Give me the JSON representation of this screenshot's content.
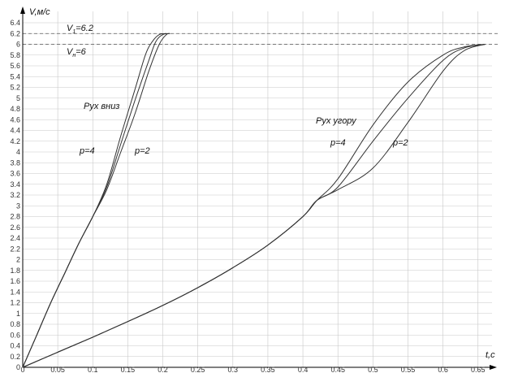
{
  "chart_data": {
    "type": "line",
    "xlabel": "t,c",
    "ylabel": "V,м/с",
    "xlim": [
      0,
      0.67
    ],
    "ylim": [
      0,
      6.4
    ],
    "grid": true,
    "x_ticks": [
      "0",
      "0.05",
      "0.1",
      "0.15",
      "0.2",
      "0.25",
      "0.3",
      "0.35",
      "0.4",
      "0.45",
      "0.5",
      "0.55",
      "0.6",
      "0.65"
    ],
    "y_ticks": [
      "0",
      "0.2",
      "0.4",
      "0.6",
      "0.8",
      "1",
      "1.2",
      "1.4",
      "1.6",
      "1.8",
      "2",
      "2.2",
      "2.4",
      "2.6",
      "2.8",
      "3",
      "3.2",
      "3.4",
      "3.6",
      "3.8",
      "4",
      "4.2",
      "4.4",
      "4.6",
      "4.8",
      "5",
      "5.2",
      "5.4",
      "5.6",
      "5.8",
      "6",
      "6.2",
      "6.4"
    ],
    "reference_lines": [
      {
        "y": 6.2,
        "label_main": "V",
        "label_sub": "1",
        "label_rest": "=6.2"
      },
      {
        "y": 6.0,
        "label_main": "V",
        "label_sub": "н",
        "label_rest": "=6"
      }
    ],
    "annotations": {
      "down": "Рух вниз",
      "up": "Рух угору",
      "down_p4": "p=4",
      "down_p2": "p=2",
      "up_p4": "p=4",
      "up_p2": "p=2"
    },
    "series": [
      {
        "group": "down",
        "x": [
          0,
          0.02,
          0.04,
          0.06,
          0.08,
          0.1,
          0.12,
          0.14,
          0.16,
          0.18,
          0.195,
          0.205,
          0.21
        ],
        "y": [
          0,
          0.6,
          1.2,
          1.75,
          2.3,
          2.8,
          3.3,
          4.0,
          4.7,
          5.5,
          6.0,
          6.18,
          6.2
        ]
      },
      {
        "group": "down",
        "x": [
          0,
          0.02,
          0.04,
          0.06,
          0.08,
          0.1,
          0.12,
          0.14,
          0.16,
          0.18,
          0.19,
          0.2,
          0.21
        ],
        "y": [
          0,
          0.6,
          1.2,
          1.75,
          2.3,
          2.8,
          3.35,
          4.15,
          4.95,
          5.7,
          6.05,
          6.18,
          6.2
        ]
      },
      {
        "group": "down",
        "x": [
          0,
          0.02,
          0.04,
          0.06,
          0.08,
          0.1,
          0.12,
          0.14,
          0.16,
          0.175,
          0.185,
          0.195,
          0.205
        ],
        "y": [
          0,
          0.6,
          1.2,
          1.75,
          2.3,
          2.8,
          3.4,
          4.3,
          5.15,
          5.8,
          6.05,
          6.18,
          6.2
        ]
      },
      {
        "group": "up",
        "x": [
          0,
          0.05,
          0.1,
          0.15,
          0.2,
          0.25,
          0.3,
          0.35,
          0.4,
          0.42,
          0.45,
          0.5,
          0.55,
          0.6,
          0.63,
          0.66
        ],
        "y": [
          0,
          0.28,
          0.56,
          0.85,
          1.15,
          1.48,
          1.85,
          2.27,
          2.8,
          3.1,
          3.5,
          4.5,
          5.3,
          5.8,
          5.95,
          6.0
        ]
      },
      {
        "group": "up",
        "x": [
          0,
          0.05,
          0.1,
          0.15,
          0.2,
          0.25,
          0.3,
          0.35,
          0.4,
          0.42,
          0.45,
          0.5,
          0.55,
          0.6,
          0.63,
          0.66
        ],
        "y": [
          0,
          0.28,
          0.56,
          0.85,
          1.15,
          1.48,
          1.85,
          2.27,
          2.8,
          3.1,
          3.35,
          4.2,
          5.0,
          5.7,
          5.93,
          6.0
        ]
      },
      {
        "group": "up",
        "x": [
          0,
          0.05,
          0.1,
          0.15,
          0.2,
          0.25,
          0.3,
          0.35,
          0.4,
          0.42,
          0.45,
          0.5,
          0.55,
          0.6,
          0.63,
          0.66
        ],
        "y": [
          0,
          0.28,
          0.56,
          0.85,
          1.15,
          1.48,
          1.85,
          2.27,
          2.8,
          3.1,
          3.3,
          3.7,
          4.55,
          5.5,
          5.88,
          6.0
        ]
      }
    ]
  }
}
